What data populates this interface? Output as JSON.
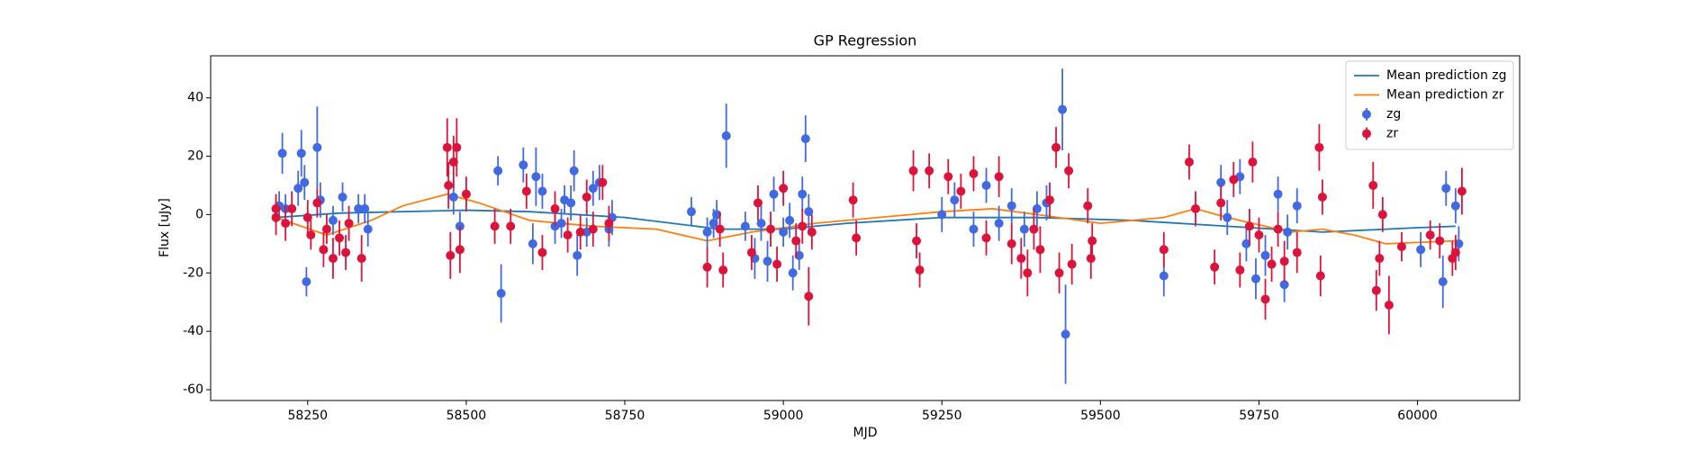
{
  "chart_data": {
    "type": "errorbar",
    "title": "GP Regression",
    "x_label": "MJD",
    "y_label": "Flux [uJy]",
    "xlim": [
      58097,
      60161
    ],
    "ylim": [
      -63.7,
      54.4
    ],
    "xticks": [
      58250,
      58500,
      58750,
      59000,
      59250,
      59500,
      59750,
      60000
    ],
    "yticks": [
      -60,
      -40,
      -20,
      0,
      20,
      40
    ],
    "legend": "upper right",
    "series": [
      {
        "name": "Mean prediction zg",
        "type": "line",
        "color": "#1f77b4",
        "x": [
          58200,
          58300,
          58500,
          58600,
          58750,
          58900,
          59000,
          59100,
          59250,
          59400,
          59550,
          59700,
          59850,
          60000,
          60060
        ],
        "values": [
          -1,
          0.5,
          1.5,
          1,
          -1,
          -5,
          -5,
          -3,
          -1,
          -1,
          -2,
          -4,
          -6,
          -4.5,
          -4
        ]
      },
      {
        "name": "Mean prediction zr",
        "type": "line",
        "color": "#ff7f0e",
        "x": [
          58200,
          58280,
          58350,
          58400,
          58470,
          58520,
          58600,
          58700,
          58800,
          58880,
          58950,
          59050,
          59150,
          59250,
          59330,
          59400,
          59500,
          59600,
          59650,
          59700,
          59800,
          59850,
          59900,
          59950,
          60060
        ],
        "values": [
          -1,
          -7,
          -2,
          3,
          7,
          4,
          -2,
          -4,
          -5,
          -9,
          -6,
          -3,
          -1,
          1,
          2,
          0,
          -3,
          -1,
          2,
          -1,
          -6,
          -5,
          -7,
          -10,
          -9
        ]
      },
      {
        "name": "zg",
        "type": "errorbar",
        "color": "#4169e1",
        "x": [
          58205,
          58210,
          58215,
          58235,
          58240,
          58245,
          58248,
          58265,
          58270,
          58290,
          58305,
          58330,
          58340,
          58345,
          58480,
          58490,
          58550,
          58555,
          58590,
          58605,
          58610,
          58620,
          58640,
          58650,
          58655,
          58665,
          58670,
          58675,
          58690,
          58700,
          58710,
          58725,
          58730,
          58855,
          58880,
          58890,
          58895,
          58910,
          58940,
          58955,
          58965,
          58975,
          58985,
          59000,
          59010,
          59015,
          59025,
          59030,
          59035,
          59040,
          59250,
          59270,
          59300,
          59320,
          59340,
          59360,
          59380,
          59400,
          59415,
          59440,
          59445,
          59600,
          59690,
          59700,
          59720,
          59730,
          59745,
          59760,
          59780,
          59790,
          59795,
          59810,
          60005,
          60040,
          60045,
          60060,
          60065
        ],
        "values": [
          3,
          21,
          2,
          9,
          21,
          11,
          -23,
          23,
          5,
          -2,
          6,
          2,
          2,
          -5,
          6,
          -4,
          15,
          -27,
          17,
          -10,
          13,
          8,
          -4,
          -3,
          5,
          4,
          15,
          -14,
          -6,
          9,
          11,
          -5,
          -1,
          1,
          -6,
          -3,
          0,
          27,
          -4,
          -15,
          -3,
          -16,
          7,
          -6,
          -2,
          -20,
          -14,
          7,
          26,
          1,
          0,
          5,
          -5,
          10,
          -3,
          3,
          -5,
          2,
          4,
          36,
          -41,
          -21,
          11,
          -1,
          13,
          -10,
          -22,
          -14,
          7,
          -24,
          -6,
          3,
          -12,
          -23,
          9,
          3,
          -10
        ],
        "errors": [
          5,
          7,
          5,
          6,
          8,
          6,
          5,
          14,
          6,
          5,
          5,
          5,
          5,
          6,
          6,
          5,
          5,
          10,
          6,
          7,
          10,
          6,
          6,
          5,
          5,
          6,
          7,
          7,
          5,
          6,
          6,
          6,
          6,
          5,
          5,
          5,
          5,
          11,
          5,
          7,
          6,
          7,
          6,
          5,
          6,
          6,
          5,
          6,
          8,
          6,
          6,
          6,
          6,
          6,
          6,
          6,
          6,
          6,
          6,
          14,
          17,
          7,
          6,
          6,
          6,
          6,
          7,
          7,
          6,
          6,
          6,
          6,
          6,
          9,
          6,
          6,
          6
        ]
      },
      {
        "name": "zr",
        "type": "errorbar",
        "color": "#dc143c",
        "x": [
          58200,
          58200,
          58215,
          58225,
          58250,
          58255,
          58265,
          58275,
          58280,
          58290,
          58300,
          58310,
          58315,
          58335,
          58470,
          58472,
          58475,
          58480,
          58485,
          58490,
          58500,
          58545,
          58570,
          58595,
          58620,
          58640,
          58660,
          58680,
          58690,
          58700,
          58715,
          58725,
          58880,
          58900,
          58905,
          58950,
          58960,
          58980,
          58990,
          59000,
          59020,
          59030,
          59040,
          59045,
          59110,
          59115,
          59205,
          59210,
          59215,
          59230,
          59260,
          59280,
          59300,
          59320,
          59340,
          59360,
          59375,
          59385,
          59395,
          59405,
          59420,
          59430,
          59435,
          59450,
          59455,
          59480,
          59485,
          59487,
          59600,
          59640,
          59650,
          59680,
          59690,
          59710,
          59720,
          59735,
          59740,
          59750,
          59760,
          59770,
          59780,
          59790,
          59810,
          59845,
          59847,
          59850,
          59930,
          59935,
          59940,
          59945,
          59955,
          59975,
          60020,
          60035,
          60055,
          60060,
          60070
        ],
        "values": [
          2,
          -1,
          -3,
          2,
          -1,
          -7,
          4,
          -12,
          -5,
          -15,
          -8,
          -13,
          -3,
          -15,
          23,
          10,
          -14,
          18,
          23,
          -12,
          7,
          -4,
          -4,
          8,
          -13,
          2,
          -7,
          -6,
          6,
          -5,
          11,
          -3,
          -18,
          -5,
          -19,
          -13,
          4,
          -5,
          -17,
          9,
          -9,
          -4,
          -28,
          -6,
          5,
          -8,
          15,
          -9,
          -19,
          15,
          13,
          8,
          14,
          -8,
          13,
          -10,
          -15,
          -20,
          -5,
          -12,
          5,
          23,
          -20,
          15,
          -17,
          3,
          -15,
          -9,
          -12,
          18,
          2,
          -18,
          4,
          12,
          -19,
          -4,
          18,
          -7,
          -29,
          -17,
          -5,
          -16,
          -13,
          23,
          -21,
          6,
          10,
          -26,
          -15,
          0,
          -31,
          -11,
          -7,
          -9,
          -15,
          -13,
          8
        ],
        "errors": [
          5,
          6,
          6,
          6,
          6,
          5,
          5,
          6,
          5,
          7,
          6,
          6,
          6,
          8,
          10,
          8,
          8,
          9,
          10,
          8,
          6,
          6,
          6,
          6,
          6,
          6,
          6,
          6,
          6,
          6,
          6,
          6,
          7,
          6,
          6,
          6,
          6,
          6,
          6,
          6,
          6,
          6,
          10,
          6,
          6,
          6,
          7,
          6,
          6,
          6,
          6,
          6,
          6,
          6,
          7,
          7,
          7,
          8,
          7,
          8,
          6,
          7,
          7,
          6,
          7,
          6,
          7,
          6,
          6,
          6,
          6,
          6,
          6,
          6,
          6,
          6,
          7,
          6,
          7,
          6,
          6,
          7,
          7,
          8,
          7,
          6,
          8,
          7,
          6,
          6,
          10,
          5,
          5,
          6,
          6,
          6,
          8
        ]
      }
    ]
  }
}
